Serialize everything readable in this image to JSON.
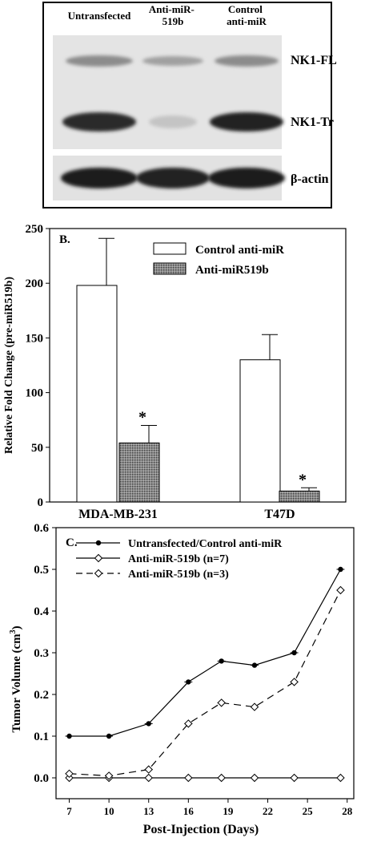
{
  "colors": {
    "background": "#ffffff",
    "ink": "#000000",
    "blot_band": "#3a3a3a",
    "blot_membrane": "#e3e3e3",
    "hatched_bar": "#7a7a7a"
  },
  "blot": {
    "lanes": [
      "Untransfected",
      "Anti-miR-\n519b",
      "Control\nanti-miR"
    ],
    "band_labels": [
      "NK1-FL",
      "NK1-Tr",
      "β-actin"
    ]
  },
  "chart_data": [
    {
      "type": "bar",
      "panel_label": "B.",
      "ylabel": "Relative Fold Change (pre-miR519b)",
      "categories": [
        "MDA-MB-231",
        "T47D"
      ],
      "ylim": [
        0,
        250
      ],
      "yticks": [
        0,
        50,
        100,
        150,
        200,
        250
      ],
      "series": [
        {
          "name": "Control anti-miR",
          "fill": "open",
          "values": [
            198,
            130
          ],
          "errors": [
            43,
            23
          ]
        },
        {
          "name": "Anti-miR519b",
          "fill": "hatched",
          "values": [
            54,
            10
          ],
          "errors": [
            16,
            3
          ]
        }
      ],
      "annotations": [
        "*",
        "*"
      ],
      "legend_position": "top-right",
      "grid": false
    },
    {
      "type": "line",
      "panel_label": "C.",
      "xlabel": "Post-Injection (Days)",
      "ylabel": "Tumor Volume (cm",
      "ylabel_sup": "3",
      "ylabel_close": ")",
      "xlim": [
        6,
        28.5
      ],
      "ylim": [
        -0.05,
        0.6
      ],
      "xticks": [
        7,
        10,
        13,
        16,
        19,
        22,
        25,
        28
      ],
      "yticks": [
        0.0,
        0.1,
        0.2,
        0.3,
        0.4,
        0.5,
        0.6
      ],
      "ytick_labels": [
        "0.0",
        "0.1",
        "0.2",
        "0.3",
        "0.4",
        "0.5",
        "0.6"
      ],
      "series": [
        {
          "name": "Untransfected/Control anti-miR",
          "marker": "filled-circle",
          "dash": "solid",
          "x": [
            7,
            10,
            13,
            16,
            18.5,
            21,
            24,
            27.5
          ],
          "y": [
            0.1,
            0.1,
            0.13,
            0.23,
            0.28,
            0.27,
            0.3,
            0.5
          ]
        },
        {
          "name": "Anti-miR-519b (n=7)",
          "marker": "open-diamond",
          "dash": "solid",
          "x": [
            7,
            10,
            13,
            16,
            18.5,
            21,
            24,
            27.5
          ],
          "y": [
            0.0,
            0.0,
            0.0,
            0.0,
            0.0,
            0.0,
            0.0,
            0.0
          ]
        },
        {
          "name": "Anti-miR-519b (n=3)",
          "marker": "open-diamond",
          "dash": "dashed",
          "x": [
            7,
            10,
            13,
            16,
            18.5,
            21,
            24,
            27.5
          ],
          "y": [
            0.01,
            0.005,
            0.02,
            0.13,
            0.18,
            0.17,
            0.23,
            0.45
          ]
        }
      ],
      "legend_position": "top-left",
      "grid": false
    }
  ]
}
